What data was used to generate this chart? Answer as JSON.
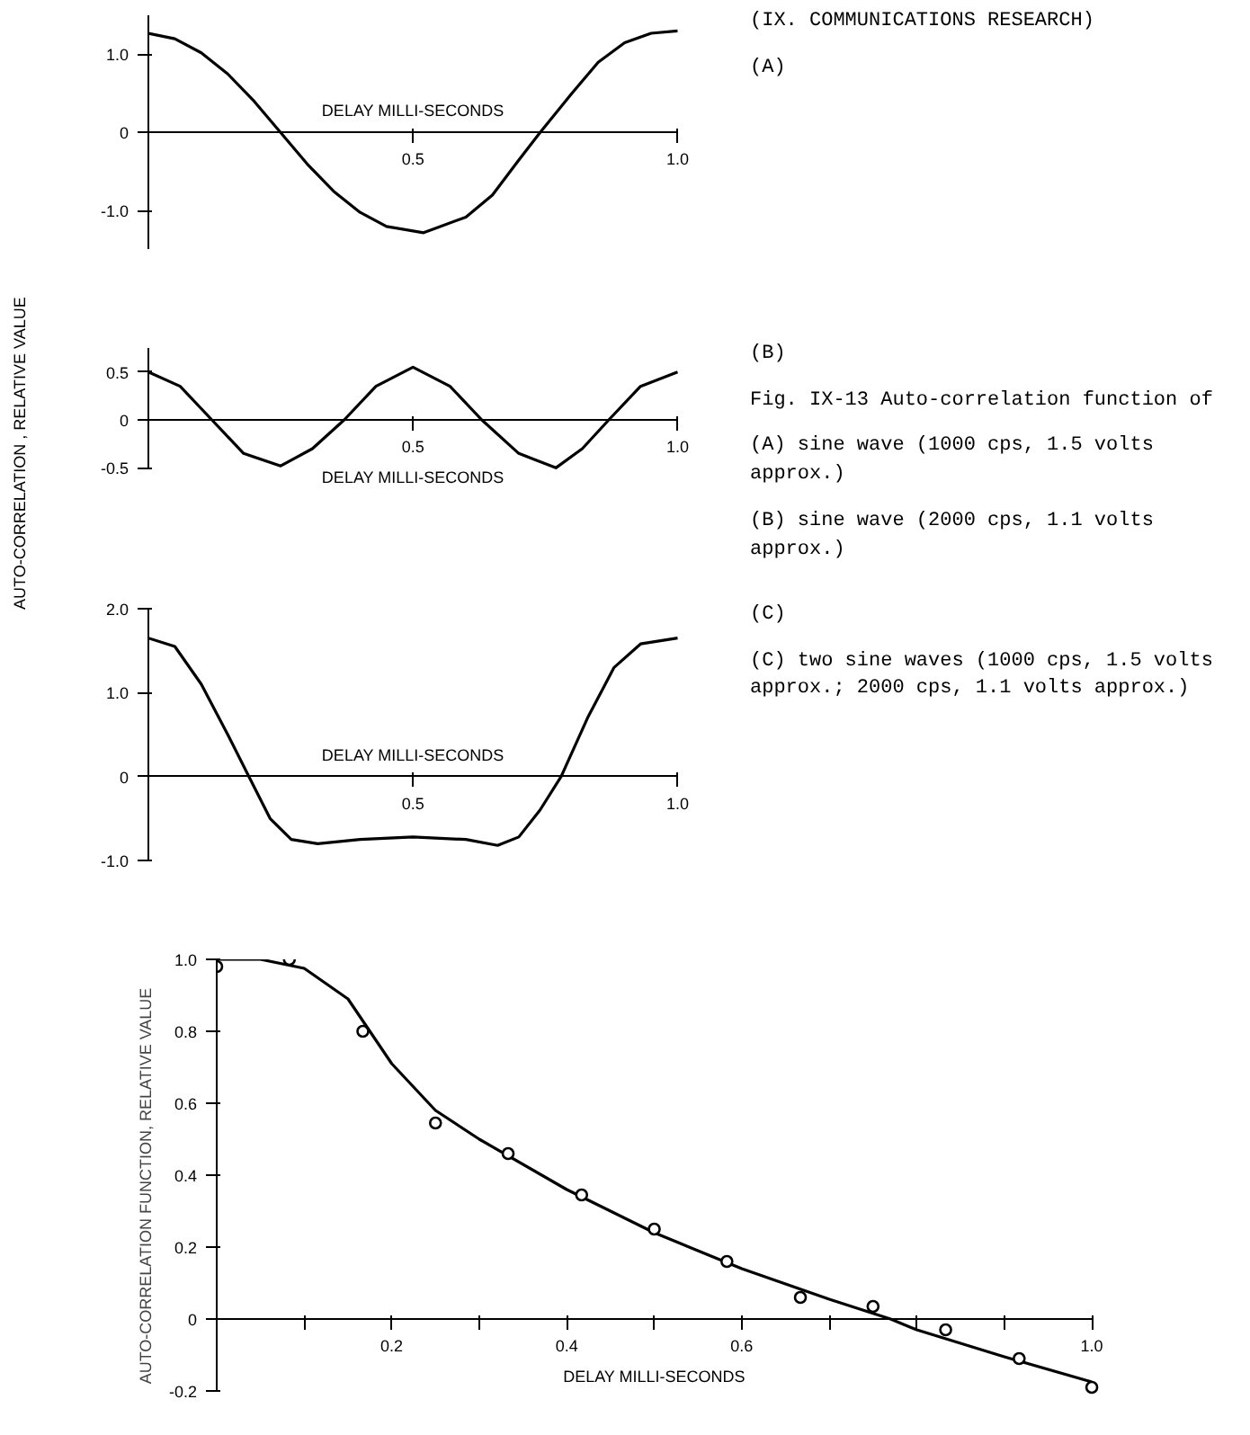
{
  "chart_data": [
    {
      "type": "line",
      "xlabel": "DELAY MILLI-SECONDS",
      "xlim": [
        0,
        1.0
      ],
      "ylim": [
        -1.5,
        1.5
      ],
      "xticks": [
        0.5,
        {
          "value": 1,
          "label": "1.0"
        }
      ],
      "yticks": [
        {
          "value": -1,
          "label": "-1.0"
        },
        0,
        {
          "value": 1,
          "label": "1.0"
        }
      ],
      "annotations": [
        "(IX. COMMUNICATIONS RESEARCH)",
        "(A)"
      ],
      "x": [
        0,
        0.05,
        0.1,
        0.15,
        0.2,
        0.25,
        0.3,
        0.35,
        0.4,
        0.45,
        0.52,
        0.6,
        0.65,
        0.7,
        0.74,
        0.8,
        0.85,
        0.9,
        0.95,
        1.0
      ],
      "series": [
        {
          "color": "#000000",
          "values": [
            1.27,
            1.2,
            1.02,
            0.75,
            0.4,
            0.0,
            -0.4,
            -0.75,
            -1.02,
            -1.2,
            -1.28,
            -1.08,
            -0.8,
            -0.35,
            0.0,
            0.5,
            0.9,
            1.15,
            1.27,
            1.3
          ]
        }
      ]
    },
    {
      "type": "line",
      "xlabel": "DELAY MILLI-SECONDS",
      "ylabel": "AUTO-CORRELATION , RELATIVE VALUE",
      "xlim": [
        0,
        1.0
      ],
      "ylim": [
        -0.5,
        0.75
      ],
      "xticks": [
        0.5,
        {
          "value": 1,
          "label": "1.0"
        }
      ],
      "yticks": [
        -0.5,
        0,
        0.5
      ],
      "annotations": [
        "(B)",
        "Fig. IX-13  Auto-correlation function of",
        "(A) sine wave (1000 cps, 1.5 volts approx.)",
        "(B) sine wave (2000 cps, 1.1 volts approx.)"
      ],
      "x": [
        0,
        0.06,
        0.12,
        0.18,
        0.25,
        0.31,
        0.37,
        0.43,
        0.5,
        0.57,
        0.63,
        0.7,
        0.77,
        0.82,
        0.87,
        0.93,
        1.0
      ],
      "series": [
        {
          "color": "#000000",
          "values": [
            0.5,
            0.35,
            0.0,
            -0.35,
            -0.48,
            -0.3,
            0.0,
            0.35,
            0.55,
            0.35,
            0.0,
            -0.35,
            -0.5,
            -0.3,
            0.0,
            0.35,
            0.5
          ]
        }
      ]
    },
    {
      "type": "line",
      "xlabel": "DELAY MILLI-SECONDS",
      "xlim": [
        0,
        1.0
      ],
      "ylim": [
        -1.0,
        2.0
      ],
      "xticks": [
        0.5,
        {
          "value": 1,
          "label": "1.0"
        }
      ],
      "yticks": [
        {
          "value": -1,
          "label": "-1.0"
        },
        0,
        {
          "value": 1,
          "label": "1.0"
        },
        {
          "value": 2,
          "label": "2.0"
        }
      ],
      "annotations": [
        "(C)",
        "(C) two sine waves (1000 cps, 1.5 volts approx.; 2000 cps, 1.1 volts approx.)"
      ],
      "x": [
        0,
        0.05,
        0.1,
        0.15,
        0.19,
        0.23,
        0.27,
        0.32,
        0.4,
        0.5,
        0.6,
        0.66,
        0.7,
        0.74,
        0.78,
        0.83,
        0.88,
        0.93,
        1.0
      ],
      "series": [
        {
          "color": "#000000",
          "values": [
            1.65,
            1.55,
            1.1,
            0.5,
            0.0,
            -0.5,
            -0.75,
            -0.8,
            -0.75,
            -0.72,
            -0.75,
            -0.82,
            -0.72,
            -0.4,
            0.0,
            0.7,
            1.3,
            1.58,
            1.65
          ]
        }
      ]
    },
    {
      "type": "line",
      "xlabel": "DELAY MILLI-SECONDS",
      "ylabel": "AUTO-CORRELATION FUNCTION, RELATIVE VALUE",
      "xlim": [
        0,
        1.0
      ],
      "ylim": [
        -0.2,
        1.0
      ],
      "xticks": [
        {
          "value": 0.1,
          "label": null
        },
        0.2,
        {
          "value": 0.3,
          "label": null
        },
        0.4,
        {
          "value": 0.5,
          "label": null
        },
        0.6,
        {
          "value": 0.7,
          "label": null
        },
        {
          "value": 0.8,
          "label": null
        },
        {
          "value": 0.9,
          "label": null
        },
        {
          "value": 1,
          "label": "1.0"
        }
      ],
      "yticks": [
        -0.2,
        0,
        0.2,
        0.4,
        0.6,
        0.8,
        {
          "value": 1,
          "label": "1.0"
        }
      ],
      "series": [
        {
          "type": "scatter",
          "marker": "circle",
          "color": "#000000",
          "x": [
            0,
            0.083,
            0.167,
            0.25,
            0.333,
            0.417,
            0.5,
            0.583,
            0.667,
            0.75,
            0.833,
            0.917,
            1.0
          ],
          "values": [
            0.98,
            1.0,
            0.8,
            0.545,
            0.46,
            0.345,
            0.25,
            0.16,
            0.06,
            0.035,
            -0.03,
            -0.11,
            -0.19
          ]
        },
        {
          "type": "line",
          "color": "#000000",
          "x": [
            0,
            0.05,
            0.1,
            0.15,
            0.2,
            0.25,
            0.3,
            0.4,
            0.5,
            0.6,
            0.7,
            0.77,
            0.8,
            0.9,
            1.0
          ],
          "values": [
            1.0,
            1.0,
            0.975,
            0.89,
            0.71,
            0.58,
            0.5,
            0.36,
            0.24,
            0.14,
            0.055,
            0.0,
            -0.03,
            -0.105,
            -0.175
          ]
        }
      ]
    }
  ]
}
